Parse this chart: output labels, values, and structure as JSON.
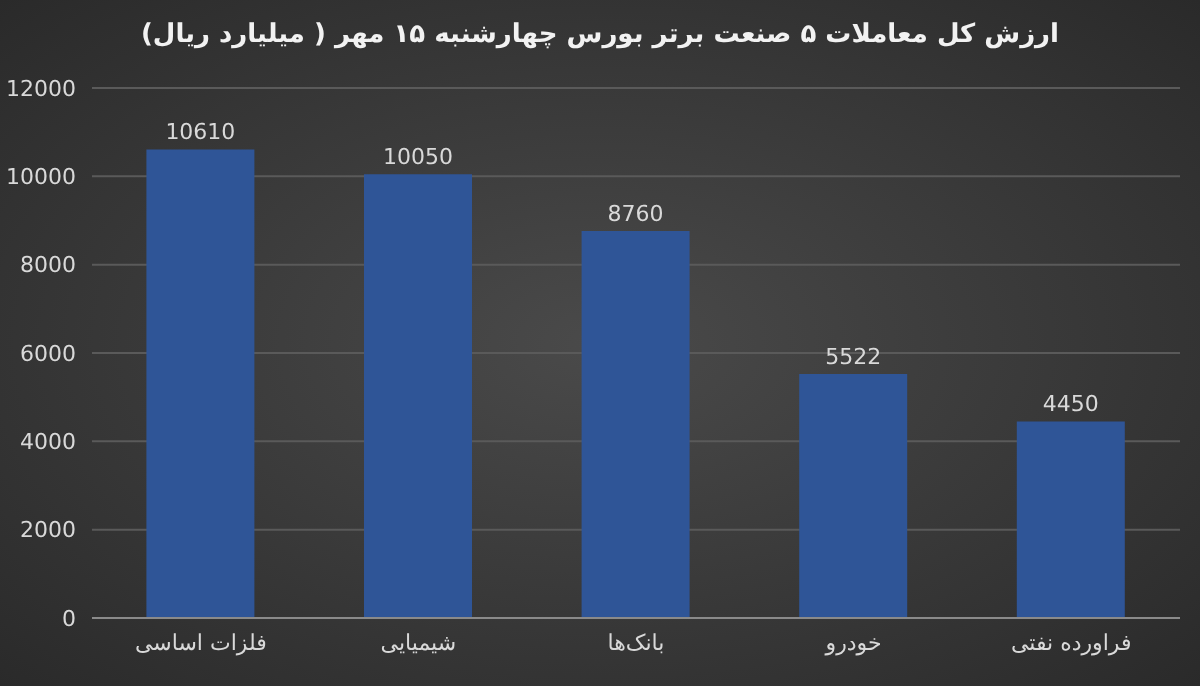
{
  "chart_data": {
    "type": "bar",
    "title": "ارزش کل معاملات ۵ صنعت برتر بورس چهارشنبه ۱۵ مهر ( میلیارد ریال)",
    "categories": [
      "فلزات اساسی",
      "شیمیایی",
      "بانک‌ها",
      "خودرو",
      "فراورده نفتی"
    ],
    "values": [
      10610,
      10050,
      8760,
      5522,
      4450
    ],
    "color": "#2f5597",
    "ylim": [
      0,
      12000
    ],
    "yticks": [
      0,
      2000,
      4000,
      6000,
      8000,
      10000,
      12000
    ],
    "grid": "y",
    "data_labels": true
  }
}
